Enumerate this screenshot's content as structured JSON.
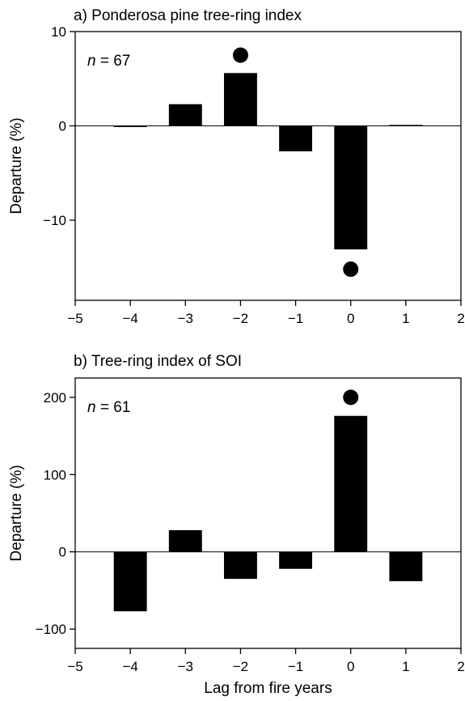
{
  "figure": {
    "shared_xlabel": "Lag from fire years"
  },
  "chart_data": [
    {
      "type": "bar",
      "title": "a) Ponderosa pine tree-ring index",
      "annotation": {
        "prefix": "n",
        "text": " = 67"
      },
      "xlabel": "",
      "ylabel": "Departure (%)",
      "xlim": [
        -5,
        2
      ],
      "ylim": [
        -18.5,
        10
      ],
      "xticks": [
        -5,
        -4,
        -3,
        -2,
        -1,
        0,
        1,
        2
      ],
      "xtick_labels": [
        "−5",
        "−4",
        "−3",
        "−2",
        "−1",
        "0",
        "1",
        "2"
      ],
      "yticks": [
        -10,
        0,
        10
      ],
      "ytick_labels": [
        "−10",
        "0",
        "10"
      ],
      "x": [
        -4,
        -3,
        -2,
        -1,
        0,
        1
      ],
      "values": [
        -0.1,
        2.3,
        5.6,
        -2.7,
        -13.1,
        0.1
      ],
      "significant_markers": [
        {
          "x": -2,
          "y": 7.5
        },
        {
          "x": 0,
          "y": -15.2
        }
      ],
      "grid": false,
      "zero_line": true,
      "bar_color": "#000000"
    },
    {
      "type": "bar",
      "title": "b) Tree-ring index of SOI",
      "annotation": {
        "prefix": "n",
        "text": " = 61"
      },
      "xlabel": "Lag from fire years",
      "ylabel": "Departure (%)",
      "xlim": [
        -5,
        2
      ],
      "ylim": [
        -125,
        225
      ],
      "xticks": [
        -5,
        -4,
        -3,
        -2,
        -1,
        0,
        1,
        2
      ],
      "xtick_labels": [
        "−5",
        "−4",
        "−3",
        "−2",
        "−1",
        "0",
        "1",
        "2"
      ],
      "yticks": [
        -100,
        0,
        100,
        200
      ],
      "ytick_labels": [
        "−100",
        "0",
        "100",
        "200"
      ],
      "x": [
        -4,
        -3,
        -2,
        -1,
        0,
        1
      ],
      "values": [
        -77,
        28,
        -35,
        -22,
        176,
        -38
      ],
      "significant_markers": [
        {
          "x": 0,
          "y": 200
        }
      ],
      "grid": false,
      "zero_line": true,
      "bar_color": "#000000"
    }
  ]
}
